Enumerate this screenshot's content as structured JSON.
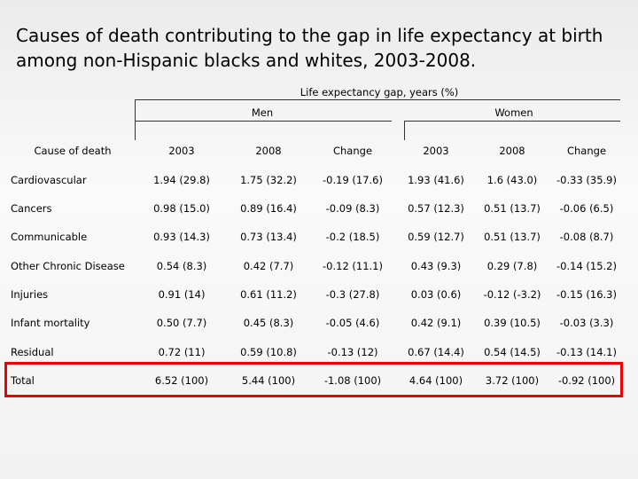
{
  "title": "Causes of death contributing to the gap in life expectancy at birth among non-Hispanic blacks and whites, 2003-2008.",
  "table": {
    "group_header": "Life expectancy gap, years (%)",
    "groups": [
      "Men",
      "Women"
    ],
    "columns": [
      "Cause of death",
      "2003",
      "2008",
      "Change",
      "2003",
      "2008",
      "Change"
    ],
    "rows": [
      [
        "Cardiovascular",
        "1.94 (29.8)",
        "1.75 (32.2)",
        "-0.19 (17.6)",
        "1.93 (41.6)",
        "1.6 (43.0)",
        "-0.33 (35.9)"
      ],
      [
        "Cancers",
        "0.98 (15.0)",
        "0.89 (16.4)",
        "-0.09 (8.3)",
        "0.57 (12.3)",
        "0.51 (13.7)",
        "-0.06 (6.5)"
      ],
      [
        "Communicable",
        "0.93 (14.3)",
        "0.73 (13.4)",
        "-0.2 (18.5)",
        "0.59 (12.7)",
        "0.51 (13.7)",
        "-0.08 (8.7)"
      ],
      [
        "Other Chronic Disease",
        "0.54 (8.3)",
        "0.42 (7.7)",
        "-0.12 (11.1)",
        "0.43 (9.3)",
        "0.29 (7.8)",
        "-0.14 (15.2)"
      ],
      [
        "Injuries",
        "0.91 (14)",
        "0.61 (11.2)",
        "-0.3 (27.8)",
        "0.03 (0.6)",
        "-0.12 (-3.2)",
        "-0.15 (16.3)"
      ],
      [
        "Infant mortality",
        "0.50 (7.7)",
        "0.45 (8.3)",
        "-0.05 (4.6)",
        "0.42 (9.1)",
        "0.39 (10.5)",
        "-0.03 (3.3)"
      ],
      [
        "Residual",
        "0.72 (11)",
        "0.59 (10.8)",
        "-0.13 (12)",
        "0.67 (14.4)",
        "0.54 (14.5)",
        "-0.13 (14.1)"
      ],
      [
        "Total",
        "6.52 (100)",
        "5.44 (100)",
        "-1.08 (100)",
        "4.64 (100)",
        "3.72 (100)",
        "-0.92 (100)"
      ]
    ]
  }
}
